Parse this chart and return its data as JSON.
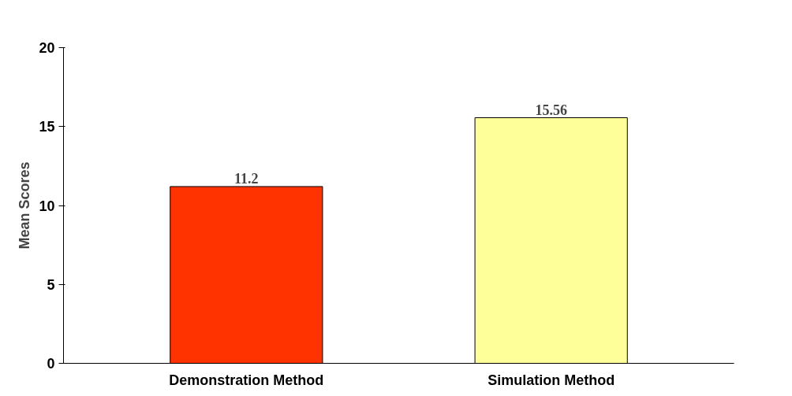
{
  "chart_data": {
    "type": "bar",
    "ylabel": "Mean Scores",
    "categories": [
      "Demonstration Method",
      "Simulation Method"
    ],
    "values": [
      11.2,
      15.56
    ],
    "colors": [
      "#ff3300",
      "#ffff99"
    ],
    "ylim": [
      0,
      20
    ],
    "yticks": [
      0,
      5,
      10,
      15,
      20
    ],
    "data_labels": true,
    "grid": false
  }
}
